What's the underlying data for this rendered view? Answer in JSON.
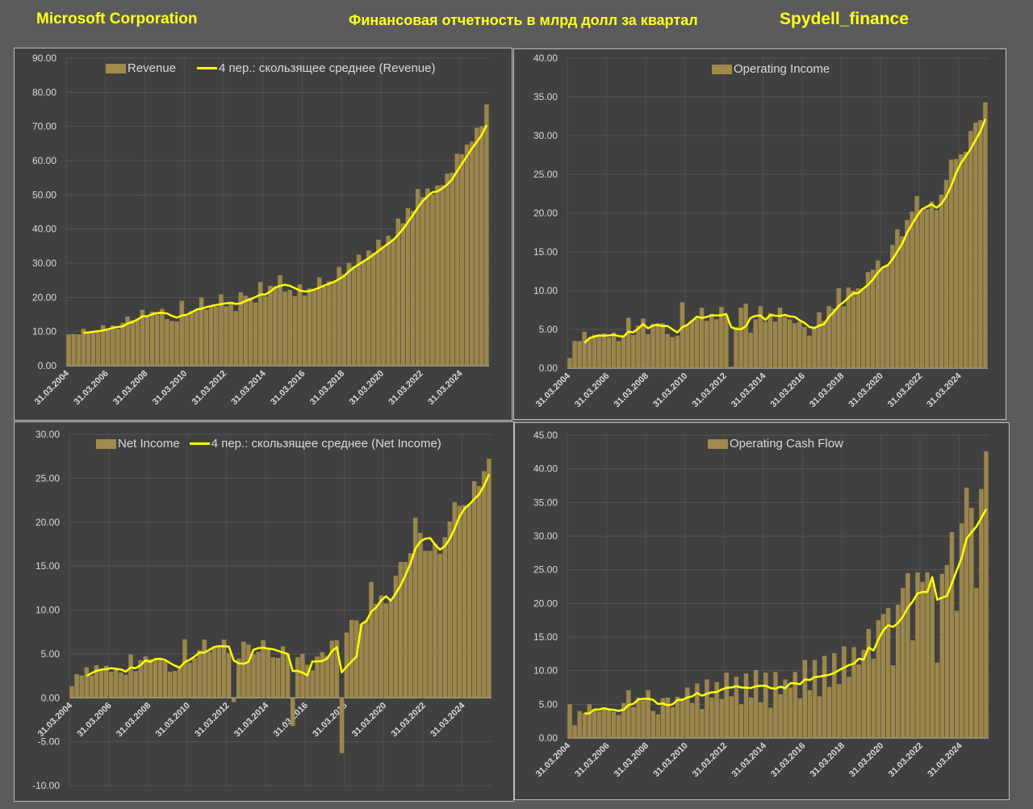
{
  "header": {
    "company": "Microsoft Corporation",
    "subtitle": "Финансовая отчетность в млрд долл за квартал",
    "brand": "Spydell_finance"
  },
  "colors": {
    "bar": "#a08a4c",
    "line": "#ffff00",
    "header": "#ffff1a",
    "panel": "#404040"
  },
  "chart_data": [
    {
      "type": "bar",
      "title": "Revenue",
      "series": [
        {
          "name": "Revenue",
          "kind": "bar",
          "values": [
            9.17,
            9.29,
            9.19,
            10.82,
            9.62,
            10.16,
            9.74,
            11.84,
            10.9,
            11.8,
            10.81,
            12.54,
            14.4,
            13.37,
            13.76,
            16.37,
            14.45,
            15.84,
            15.06,
            16.63,
            13.65,
            13.1,
            12.92,
            19.02,
            14.5,
            16.04,
            16.2,
            19.95,
            16.43,
            17.37,
            17.37,
            20.89,
            17.41,
            18.06,
            16.01,
            21.46,
            20.49,
            19.9,
            18.53,
            24.52,
            20.4,
            23.38,
            23.2,
            26.47,
            21.73,
            22.18,
            20.38,
            23.8,
            20.53,
            22.64,
            22.33,
            25.83,
            23.21,
            24.7,
            24.54,
            28.92,
            26.82,
            30.09,
            29.08,
            32.47,
            30.57,
            33.72,
            33.06,
            36.91,
            35.02,
            38.03,
            37.15,
            43.08,
            41.71,
            46.15,
            45.32,
            51.73,
            49.36,
            51.87,
            50.12,
            52.75,
            52.86,
            56.19,
            56.52,
            62.02,
            61.86,
            64.73,
            65.59,
            69.63,
            70.07,
            76.44
          ]
        },
        {
          "name": "4 пер.: скользящее среднее (Revenue)",
          "kind": "moving_average",
          "window": 4
        }
      ],
      "x_start": "31.03.2004",
      "x_tick_labels": [
        "31.03.2004",
        "31.03.2006",
        "31.03.2008",
        "31.03.2010",
        "31.03.2012",
        "31.03.2014",
        "31.03.2016",
        "31.03.2018",
        "31.03.2020",
        "31.03.2022",
        "31.03.2024"
      ],
      "y_tick_labels": [
        "0.00",
        "10.00",
        "20.00",
        "30.00",
        "40.00",
        "50.00",
        "60.00",
        "70.00",
        "80.00",
        "90.00"
      ],
      "ylim": [
        0,
        90
      ],
      "ystep": 10,
      "legend": "top",
      "grid": true
    },
    {
      "type": "bar",
      "title": "Operating Income",
      "series": [
        {
          "name": "Operating Income",
          "kind": "bar",
          "values": [
            1.3,
            3.5,
            3.5,
            4.7,
            3.8,
            4.3,
            4.1,
            4.5,
            4.0,
            4.6,
            3.5,
            4.2,
            6.5,
            4.3,
            5.5,
            6.4,
            4.4,
            5.7,
            5.8,
            5.8,
            4.4,
            4.0,
            4.2,
            8.5,
            5.6,
            6.1,
            6.4,
            7.8,
            6.1,
            7.0,
            6.3,
            7.9,
            6.8,
            0.2,
            5.3,
            7.8,
            8.3,
            4.6,
            6.3,
            8.0,
            6.0,
            7.1,
            6.0,
            7.8,
            6.6,
            6.3,
            5.8,
            6.0,
            5.3,
            4.2,
            5.2,
            7.2,
            6.1,
            8.0,
            7.7,
            10.3,
            8.0,
            10.4,
            10.0,
            10.3,
            10.3,
            12.4,
            12.7,
            13.9,
            13.0,
            13.4,
            15.9,
            17.9,
            17.0,
            19.1,
            20.2,
            22.2,
            20.4,
            20.5,
            21.5,
            20.4,
            22.4,
            24.3,
            26.9,
            27.0,
            27.6,
            27.9,
            30.6,
            31.7,
            32.0,
            34.3
          ]
        },
        {
          "name": "4 пер.: скользящее среднее (Operating Income)",
          "kind": "moving_average",
          "window": 4,
          "in_legend": false
        }
      ],
      "x_start": "31.03.2004",
      "x_tick_labels": [
        "31.03.2004",
        "31.03.2006",
        "31.03.2008",
        "31.03.2010",
        "31.03.2012",
        "31.03.2014",
        "31.03.2016",
        "31.03.2018",
        "31.03.2020",
        "31.03.2022",
        "31.03.2024"
      ],
      "y_tick_labels": [
        "0.00",
        "5.00",
        "10.00",
        "15.00",
        "20.00",
        "25.00",
        "30.00",
        "35.00",
        "40.00"
      ],
      "ylim": [
        0,
        40
      ],
      "ystep": 5,
      "legend": "top",
      "grid": true
    },
    {
      "type": "bar",
      "title": "Net Income",
      "series": [
        {
          "name": "Net Income",
          "kind": "bar",
          "values": [
            1.32,
            2.69,
            2.53,
            3.46,
            2.56,
            3.7,
            3.14,
            3.65,
            2.98,
            3.41,
            2.87,
            2.63,
            4.93,
            3.04,
            4.29,
            4.71,
            4.39,
            4.3,
            4.37,
            4.17,
            2.98,
            3.05,
            3.57,
            6.66,
            4.01,
            4.52,
            5.41,
            6.63,
            5.23,
            5.87,
            5.74,
            6.62,
            5.11,
            -0.49,
            4.47,
            6.38,
            6.06,
            4.97,
            5.24,
            6.56,
            5.66,
            4.61,
            4.54,
            5.86,
            4.99,
            -3.2,
            4.62,
            5.0,
            3.76,
            3.12,
            4.69,
            5.2,
            4.8,
            6.51,
            6.58,
            -6.3,
            7.42,
            8.87,
            8.82,
            8.42,
            8.81,
            13.19,
            10.68,
            11.65,
            10.75,
            11.2,
            13.89,
            15.46,
            15.46,
            16.46,
            20.51,
            18.77,
            16.73,
            16.74,
            17.56,
            16.43,
            18.3,
            20.08,
            22.29,
            21.87,
            21.94,
            22.04,
            24.67,
            24.11,
            25.82,
            27.23
          ]
        },
        {
          "name": "4 пер.: скользящее среднее (Net Income)",
          "kind": "moving_average",
          "window": 4
        }
      ],
      "x_start": "31.03.2004",
      "x_tick_labels": [
        "31.03.2004",
        "31.03.2006",
        "31.03.2008",
        "31.03.2010",
        "31.03.2012",
        "31.03.2014",
        "31.03.2016",
        "31.03.2018",
        "31.03.2020",
        "31.03.2022",
        "31.03.2024"
      ],
      "y_tick_labels": [
        "-10.00",
        "-5.00",
        "0.00",
        "5.00",
        "10.00",
        "15.00",
        "20.00",
        "25.00",
        "30.00"
      ],
      "ylim": [
        -10,
        30
      ],
      "ystep": 5,
      "legend": "top",
      "grid": true
    },
    {
      "type": "bar",
      "title": "Operating Cash Flow",
      "series": [
        {
          "name": "Operating Cash Flow",
          "kind": "bar",
          "values": [
            5.0,
            1.9,
            4.0,
            3.7,
            5.0,
            4.2,
            4.0,
            4.5,
            4.3,
            3.9,
            3.4,
            5.2,
            7.1,
            4.6,
            6.0,
            5.6,
            7.1,
            4.0,
            3.5,
            5.9,
            6.0,
            4.6,
            6.1,
            5.9,
            7.5,
            5.2,
            8.1,
            4.3,
            8.7,
            6.0,
            8.3,
            5.8,
            9.7,
            6.2,
            9.1,
            5.0,
            9.6,
            6.0,
            10.1,
            5.3,
            9.7,
            4.5,
            9.8,
            6.5,
            8.7,
            7.5,
            9.8,
            5.9,
            11.6,
            7.1,
            11.6,
            6.2,
            12.2,
            7.6,
            12.6,
            8.0,
            13.6,
            9.1,
            13.5,
            10.9,
            13.1,
            16.2,
            11.8,
            17.5,
            18.4,
            19.3,
            10.8,
            19.8,
            22.3,
            24.5,
            14.5,
            24.6,
            23.2,
            24.6,
            23.2,
            11.2,
            24.4,
            25.7,
            30.6,
            18.9,
            31.9,
            37.2,
            34.2,
            22.3,
            37.0,
            42.6
          ]
        },
        {
          "name": "4 пер.: скользящее среднее (Operating Cash Flow)",
          "kind": "moving_average",
          "window": 4,
          "in_legend": false
        }
      ],
      "x_start": "31.03.2004",
      "x_tick_labels": [
        "31.03.2004",
        "31.03.2006",
        "31.03.2008",
        "31.03.2010",
        "31.03.2012",
        "31.03.2014",
        "31.03.2016",
        "31.03.2018",
        "31.03.2020",
        "31.03.2022",
        "31.03.2024"
      ],
      "y_tick_labels": [
        "0.00",
        "5.00",
        "10.00",
        "15.00",
        "20.00",
        "25.00",
        "30.00",
        "35.00",
        "40.00",
        "45.00"
      ],
      "ylim": [
        0,
        45
      ],
      "ystep": 5,
      "legend": "top",
      "grid": true
    }
  ]
}
